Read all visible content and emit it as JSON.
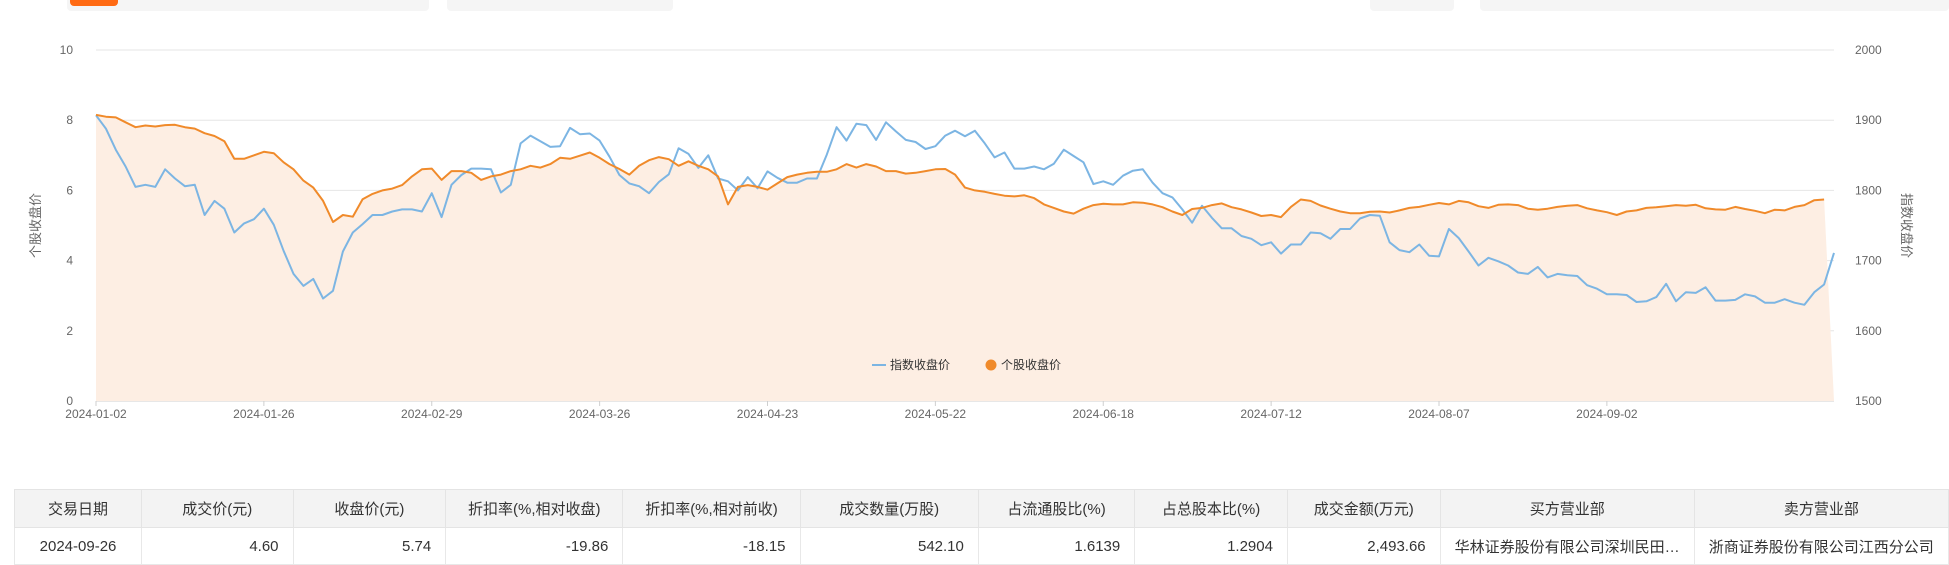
{
  "colors": {
    "index_series": "#7cb5e3",
    "stock_series": "#f08a2a",
    "area_fill": "#fdeee3",
    "tab_accent": "#ff6a13"
  },
  "chart_data": {
    "type": "line",
    "left_axis_name": "个股收盘价",
    "right_axis_name": "指数收盘价",
    "left_ylim": [
      0,
      10
    ],
    "right_ylim": [
      1500,
      2000
    ],
    "left_ticks": [
      "10",
      "8",
      "6",
      "4",
      "2",
      "0"
    ],
    "right_ticks": [
      "2000",
      "1900",
      "1800",
      "1700",
      "1600",
      "1500"
    ],
    "x_tick_labels": [
      "2024-01-02",
      "2024-01-26",
      "2024-02-29",
      "2024-03-26",
      "2024-04-23",
      "2024-05-22",
      "2024-06-18",
      "2024-07-12",
      "2024-08-07",
      "2024-09-02"
    ],
    "x_tick_positions": [
      0,
      17,
      34,
      51,
      68,
      85,
      102,
      119,
      136,
      153
    ],
    "legend_placement": "bottom-center",
    "grid": true,
    "series": [
      {
        "name": "指数收盘价",
        "axis": "right",
        "values": [
          1907,
          1888,
          1858,
          1834,
          1805,
          1808,
          1805,
          1830,
          1817,
          1806,
          1808,
          1765,
          1785,
          1774,
          1740,
          1753,
          1759,
          1774,
          1751,
          1714,
          1681,
          1664,
          1674,
          1646,
          1657,
          1713,
          1740,
          1752,
          1765,
          1765,
          1770,
          1773,
          1773,
          1770,
          1796,
          1762,
          1808,
          1822,
          1831,
          1831,
          1830,
          1797,
          1808,
          1867,
          1878,
          1870,
          1862,
          1863,
          1889,
          1880,
          1881,
          1871,
          1848,
          1822,
          1810,
          1806,
          1796,
          1812,
          1823,
          1860,
          1852,
          1832,
          1850,
          1817,
          1813,
          1800,
          1819,
          1803,
          1827,
          1818,
          1811,
          1811,
          1817,
          1817,
          1851,
          1890,
          1871,
          1895,
          1893,
          1872,
          1897,
          1884,
          1872,
          1869,
          1859,
          1863,
          1878,
          1885,
          1877,
          1885,
          1867,
          1847,
          1854,
          1831,
          1831,
          1834,
          1830,
          1838,
          1858,
          1849,
          1840,
          1809,
          1813,
          1808,
          1821,
          1828,
          1830,
          1811,
          1796,
          1790,
          1773,
          1754,
          1778,
          1761,
          1746,
          1746,
          1735,
          1731,
          1722,
          1726,
          1710,
          1723,
          1723,
          1740,
          1739,
          1731,
          1745,
          1745,
          1760,
          1765,
          1764,
          1726,
          1715,
          1712,
          1723,
          1707,
          1706,
          1745,
          1732,
          1713,
          1693,
          1704,
          1699,
          1693,
          1683,
          1681,
          1691,
          1676,
          1681,
          1679,
          1678,
          1665,
          1660,
          1652,
          1652,
          1651,
          1641,
          1642,
          1648,
          1667,
          1642,
          1655,
          1654,
          1662,
          1643,
          1643,
          1644,
          1652,
          1649,
          1640,
          1640,
          1645,
          1640,
          1637,
          1655,
          1666,
          1711
        ]
      },
      {
        "name": "个股收盘价",
        "axis": "left",
        "values": [
          8.15,
          8.1,
          8.08,
          7.94,
          7.8,
          7.85,
          7.82,
          7.86,
          7.87,
          7.8,
          7.76,
          7.63,
          7.55,
          7.4,
          6.9,
          6.9,
          7.0,
          7.1,
          7.06,
          6.8,
          6.6,
          6.28,
          6.08,
          5.7,
          5.1,
          5.3,
          5.25,
          5.75,
          5.9,
          6.0,
          6.05,
          6.15,
          6.4,
          6.6,
          6.62,
          6.3,
          6.55,
          6.55,
          6.5,
          6.3,
          6.4,
          6.45,
          6.55,
          6.6,
          6.7,
          6.65,
          6.75,
          6.93,
          6.9,
          6.99,
          7.08,
          6.93,
          6.75,
          6.61,
          6.45,
          6.7,
          6.86,
          6.95,
          6.89,
          6.7,
          6.83,
          6.7,
          6.6,
          6.4,
          5.6,
          6.1,
          6.15,
          6.1,
          6.02,
          6.2,
          6.38,
          6.45,
          6.5,
          6.53,
          6.53,
          6.6,
          6.75,
          6.65,
          6.75,
          6.68,
          6.55,
          6.55,
          6.48,
          6.5,
          6.55,
          6.6,
          6.61,
          6.45,
          6.08,
          6.0,
          5.96,
          5.9,
          5.85,
          5.83,
          5.86,
          5.78,
          5.6,
          5.5,
          5.4,
          5.34,
          5.48,
          5.58,
          5.62,
          5.6,
          5.6,
          5.66,
          5.65,
          5.6,
          5.52,
          5.4,
          5.3,
          5.47,
          5.5,
          5.58,
          5.63,
          5.52,
          5.46,
          5.37,
          5.27,
          5.3,
          5.24,
          5.53,
          5.74,
          5.7,
          5.57,
          5.48,
          5.4,
          5.35,
          5.35,
          5.39,
          5.4,
          5.37,
          5.43,
          5.5,
          5.53,
          5.59,
          5.64,
          5.6,
          5.7,
          5.66,
          5.55,
          5.5,
          5.59,
          5.6,
          5.58,
          5.48,
          5.45,
          5.48,
          5.53,
          5.56,
          5.58,
          5.49,
          5.43,
          5.38,
          5.3,
          5.4,
          5.43,
          5.5,
          5.52,
          5.55,
          5.58,
          5.56,
          5.59,
          5.49,
          5.46,
          5.45,
          5.53,
          5.47,
          5.42,
          5.35,
          5.45,
          5.43,
          5.53,
          5.58,
          5.72,
          5.74
        ]
      }
    ]
  },
  "table": {
    "headers": [
      "交易日期",
      "成交价(元)",
      "收盘价(元)",
      "折扣率(%,相对收盘)",
      "折扣率(%,相对前收)",
      "成交数量(万股)",
      "占流通股比(%)",
      "占总股本比(%)",
      "成交金额(万元)",
      "买方营业部",
      "卖方营业部"
    ],
    "rows": [
      [
        "2024-09-26",
        "4.60",
        "5.74",
        "-19.86",
        "-18.15",
        "542.10",
        "1.6139",
        "1.2904",
        "2,493.66",
        "华林证券股份有限公司深圳民田路证券营业部",
        "浙商证券股份有限公司江西分公司"
      ]
    ]
  }
}
